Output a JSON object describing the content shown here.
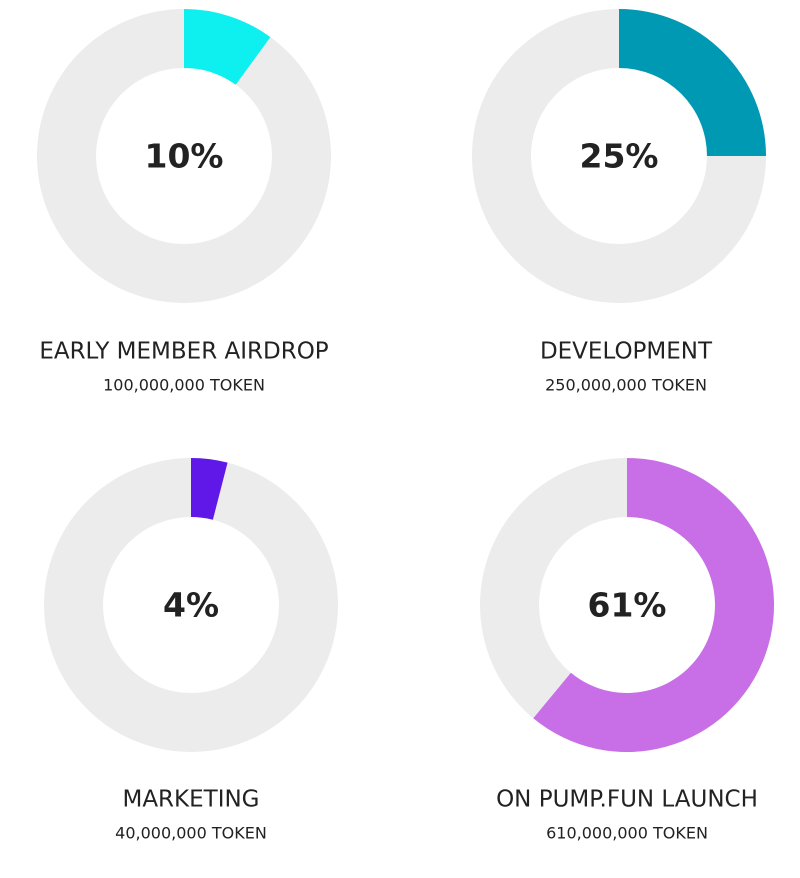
{
  "chart_data": [
    {
      "type": "donut",
      "title": "EARLY MEMBER AIRDROP",
      "subtitle": "100,000,000 TOKEN",
      "values": [
        10
      ],
      "value_labels": [
        "10%"
      ],
      "color": "#0ef0f0"
    },
    {
      "type": "donut",
      "title": "DEVELOPMENT",
      "subtitle": "250,000,000 TOKEN",
      "values": [
        25
      ],
      "value_labels": [
        "25%"
      ],
      "color": "#0099b4"
    },
    {
      "type": "donut",
      "title": "MARKETING",
      "subtitle": "40,000,000 TOKEN",
      "values": [
        4
      ],
      "value_labels": [
        "4%"
      ],
      "color": "#6018e8"
    },
    {
      "type": "donut",
      "title": "ON PUMP.FUN LAUNCH",
      "subtitle": "610,000,000 TOKEN",
      "values": [
        61
      ],
      "value_labels": [
        "61%"
      ],
      "color": "#c86ee6"
    }
  ]
}
